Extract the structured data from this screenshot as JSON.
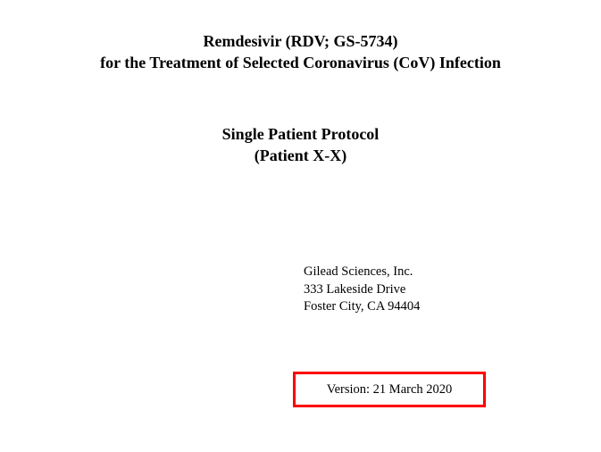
{
  "title": {
    "line1": "Remdesivir (RDV; GS-5734)",
    "line2": "for the Treatment of Selected Coronavirus (CoV) Infection"
  },
  "subtitle": {
    "line1": "Single Patient Protocol",
    "line2": "(Patient X-X)"
  },
  "address": {
    "line1": "Gilead Sciences, Inc.",
    "line2": "333 Lakeside Drive",
    "line3": "Foster City, CA 94404"
  },
  "version": {
    "text": "Version: 21 March 2020"
  },
  "styles": {
    "title_fontsize": 18,
    "title_fontweight": "bold",
    "subtitle_fontsize": 18,
    "subtitle_fontweight": "bold",
    "address_fontsize": 14.5,
    "version_fontsize": 14.5,
    "font_family": "Times New Roman",
    "text_color": "#000000",
    "background_color": "#ffffff",
    "highlight_border_color": "#ff0000",
    "highlight_border_width": 3
  }
}
